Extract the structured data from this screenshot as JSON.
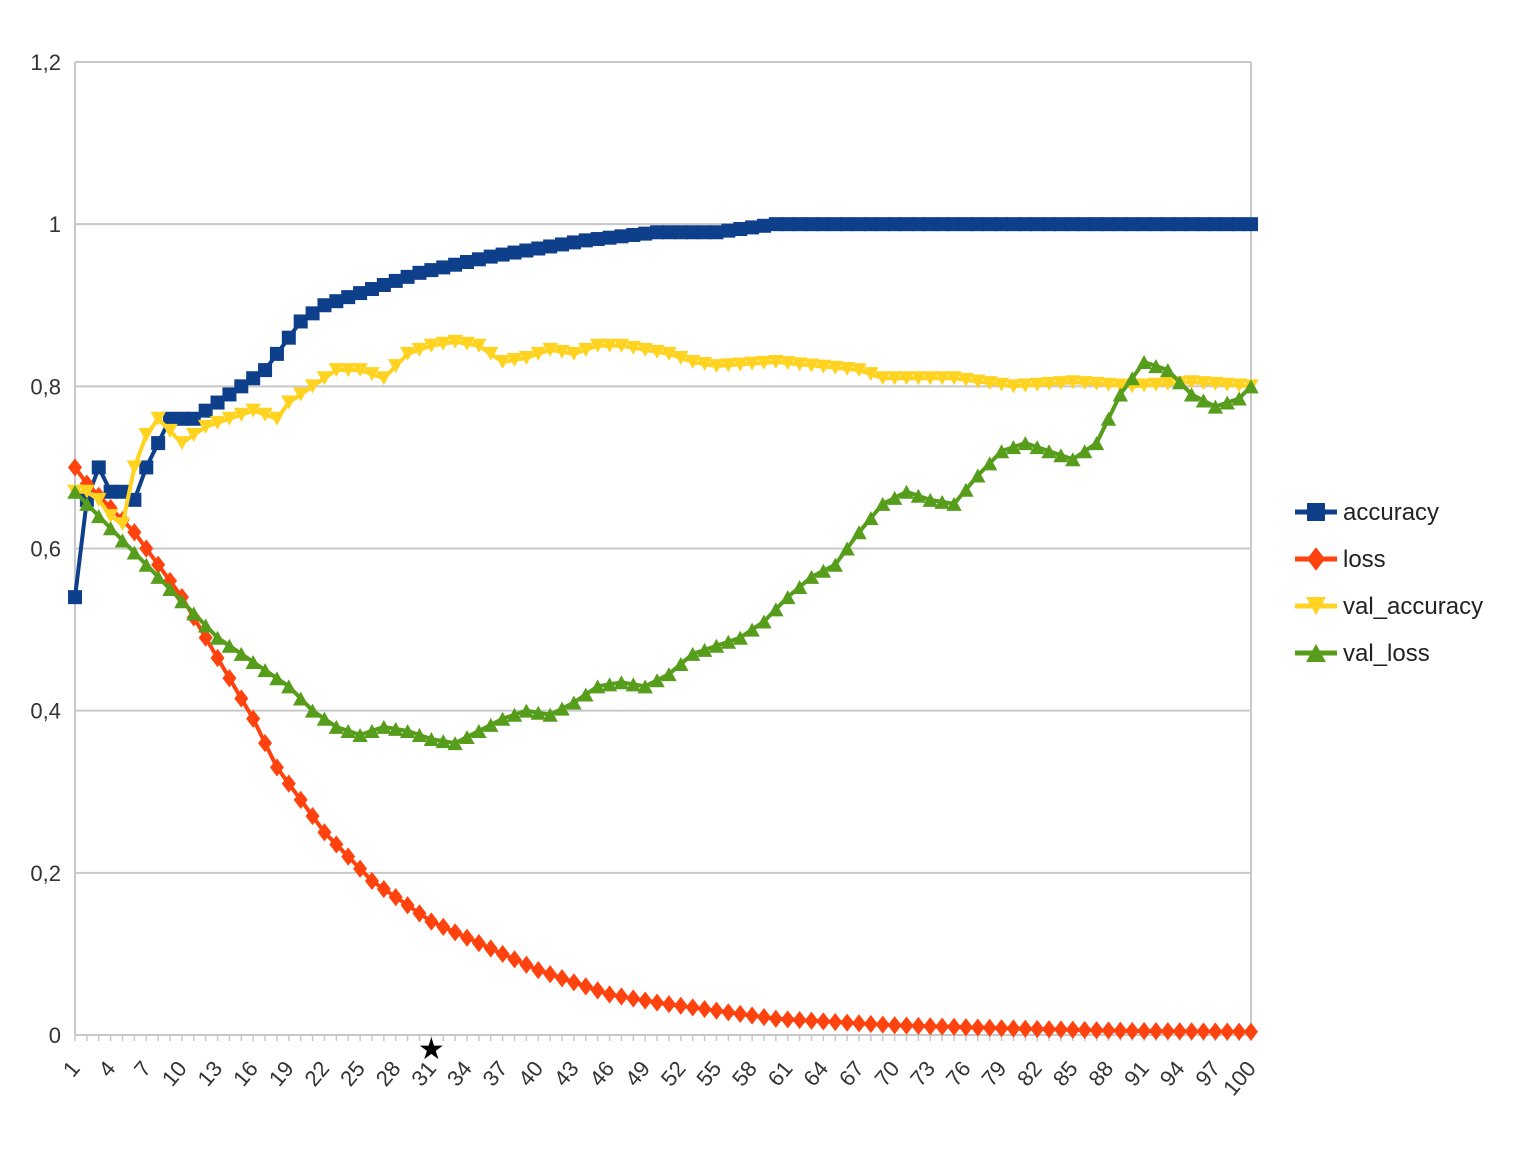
{
  "chart_data": {
    "type": "line",
    "title": "",
    "xlabel": "",
    "ylabel": "",
    "ylim": [
      0,
      1.2
    ],
    "yticks": [
      "0",
      "0,2",
      "0,4",
      "0,6",
      "0,8",
      "1",
      "1,2"
    ],
    "ytick_values": [
      0,
      0.2,
      0.4,
      0.6,
      0.8,
      1.0,
      1.2
    ],
    "x": [
      1,
      2,
      3,
      4,
      5,
      6,
      7,
      8,
      9,
      10,
      11,
      12,
      13,
      14,
      15,
      16,
      17,
      18,
      19,
      20,
      21,
      22,
      23,
      24,
      25,
      26,
      27,
      28,
      29,
      30,
      31,
      32,
      33,
      34,
      35,
      36,
      37,
      38,
      39,
      40,
      41,
      42,
      43,
      44,
      45,
      46,
      47,
      48,
      49,
      50,
      51,
      52,
      53,
      54,
      55,
      56,
      57,
      58,
      59,
      60,
      61,
      62,
      63,
      64,
      65,
      66,
      67,
      68,
      69,
      70,
      71,
      72,
      73,
      74,
      75,
      76,
      77,
      78,
      79,
      80,
      81,
      82,
      83,
      84,
      85,
      86,
      87,
      88,
      89,
      90,
      91,
      92,
      93,
      94,
      95,
      96,
      97,
      98,
      99,
      100
    ],
    "xtick_labels": [
      "1",
      "4",
      "7",
      "10",
      "13",
      "16",
      "19",
      "22",
      "25",
      "28",
      "31",
      "34",
      "37",
      "40",
      "43",
      "46",
      "49",
      "52",
      "55",
      "58",
      "61",
      "64",
      "67",
      "70",
      "73",
      "76",
      "79",
      "82",
      "85",
      "88",
      "91",
      "94",
      "97",
      "100"
    ],
    "legend_position": "right",
    "grid": true,
    "series": [
      {
        "name": "accuracy",
        "color": "#0e3f8a",
        "marker": "square",
        "anchors": [
          [
            1,
            0.54
          ],
          [
            2,
            0.66
          ],
          [
            3,
            0.7
          ],
          [
            4,
            0.67
          ],
          [
            5,
            0.67
          ],
          [
            6,
            0.66
          ],
          [
            7,
            0.7
          ],
          [
            8,
            0.73
          ],
          [
            9,
            0.76
          ],
          [
            10,
            0.76
          ],
          [
            11,
            0.76
          ],
          [
            12,
            0.77
          ],
          [
            13,
            0.78
          ],
          [
            14,
            0.79
          ],
          [
            15,
            0.8
          ],
          [
            16,
            0.81
          ],
          [
            17,
            0.82
          ],
          [
            18,
            0.84
          ],
          [
            19,
            0.86
          ],
          [
            20,
            0.88
          ],
          [
            21,
            0.89
          ],
          [
            22,
            0.9
          ],
          [
            24,
            0.91
          ],
          [
            26,
            0.92
          ],
          [
            28,
            0.93
          ],
          [
            30,
            0.94
          ],
          [
            33,
            0.95
          ],
          [
            36,
            0.96
          ],
          [
            40,
            0.97
          ],
          [
            44,
            0.98
          ],
          [
            50,
            0.99
          ],
          [
            55,
            0.99
          ],
          [
            60,
            1.0
          ],
          [
            100,
            1.0
          ]
        ]
      },
      {
        "name": "loss",
        "color": "#ff420e",
        "marker": "diamond",
        "anchors": [
          [
            1,
            0.7
          ],
          [
            2,
            0.68
          ],
          [
            4,
            0.65
          ],
          [
            6,
            0.62
          ],
          [
            8,
            0.58
          ],
          [
            10,
            0.54
          ],
          [
            12,
            0.49
          ],
          [
            14,
            0.44
          ],
          [
            16,
            0.39
          ],
          [
            18,
            0.33
          ],
          [
            20,
            0.29
          ],
          [
            22,
            0.25
          ],
          [
            24,
            0.22
          ],
          [
            26,
            0.19
          ],
          [
            28,
            0.17
          ],
          [
            31,
            0.14
          ],
          [
            34,
            0.12
          ],
          [
            37,
            0.1
          ],
          [
            40,
            0.08
          ],
          [
            43,
            0.065
          ],
          [
            46,
            0.05
          ],
          [
            50,
            0.04
          ],
          [
            55,
            0.03
          ],
          [
            60,
            0.02
          ],
          [
            70,
            0.012
          ],
          [
            80,
            0.008
          ],
          [
            90,
            0.005
          ],
          [
            100,
            0.004
          ]
        ]
      },
      {
        "name": "val_accuracy",
        "color": "#ffd320",
        "marker": "triangle-down",
        "anchors": [
          [
            1,
            0.67
          ],
          [
            2,
            0.67
          ],
          [
            3,
            0.66
          ],
          [
            4,
            0.64
          ],
          [
            5,
            0.63
          ],
          [
            6,
            0.7
          ],
          [
            7,
            0.74
          ],
          [
            8,
            0.76
          ],
          [
            10,
            0.73
          ],
          [
            12,
            0.75
          ],
          [
            14,
            0.76
          ],
          [
            16,
            0.77
          ],
          [
            18,
            0.76
          ],
          [
            19,
            0.78
          ],
          [
            21,
            0.8
          ],
          [
            23,
            0.82
          ],
          [
            25,
            0.82
          ],
          [
            27,
            0.81
          ],
          [
            29,
            0.84
          ],
          [
            31,
            0.85
          ],
          [
            33,
            0.855
          ],
          [
            35,
            0.85
          ],
          [
            37,
            0.83
          ],
          [
            39,
            0.835
          ],
          [
            41,
            0.845
          ],
          [
            43,
            0.84
          ],
          [
            45,
            0.85
          ],
          [
            47,
            0.85
          ],
          [
            49,
            0.845
          ],
          [
            51,
            0.84
          ],
          [
            53,
            0.83
          ],
          [
            55,
            0.825
          ],
          [
            60,
            0.83
          ],
          [
            67,
            0.82
          ],
          [
            69,
            0.81
          ],
          [
            75,
            0.81
          ],
          [
            80,
            0.8
          ],
          [
            85,
            0.805
          ],
          [
            90,
            0.8
          ],
          [
            95,
            0.805
          ],
          [
            100,
            0.8
          ]
        ]
      },
      {
        "name": "val_loss",
        "color": "#579d1c",
        "marker": "triangle-up",
        "anchors": [
          [
            1,
            0.67
          ],
          [
            3,
            0.64
          ],
          [
            5,
            0.61
          ],
          [
            7,
            0.58
          ],
          [
            9,
            0.55
          ],
          [
            11,
            0.52
          ],
          [
            13,
            0.49
          ],
          [
            15,
            0.47
          ],
          [
            17,
            0.45
          ],
          [
            19,
            0.43
          ],
          [
            21,
            0.4
          ],
          [
            23,
            0.38
          ],
          [
            25,
            0.37
          ],
          [
            27,
            0.38
          ],
          [
            29,
            0.375
          ],
          [
            31,
            0.365
          ],
          [
            33,
            0.36
          ],
          [
            35,
            0.375
          ],
          [
            37,
            0.39
          ],
          [
            39,
            0.4
          ],
          [
            41,
            0.395
          ],
          [
            43,
            0.41
          ],
          [
            45,
            0.43
          ],
          [
            47,
            0.435
          ],
          [
            49,
            0.43
          ],
          [
            51,
            0.445
          ],
          [
            53,
            0.47
          ],
          [
            55,
            0.48
          ],
          [
            57,
            0.49
          ],
          [
            59,
            0.51
          ],
          [
            61,
            0.54
          ],
          [
            63,
            0.565
          ],
          [
            65,
            0.58
          ],
          [
            67,
            0.62
          ],
          [
            69,
            0.655
          ],
          [
            71,
            0.67
          ],
          [
            73,
            0.66
          ],
          [
            75,
            0.655
          ],
          [
            77,
            0.69
          ],
          [
            79,
            0.72
          ],
          [
            81,
            0.73
          ],
          [
            83,
            0.72
          ],
          [
            85,
            0.71
          ],
          [
            87,
            0.73
          ],
          [
            89,
            0.79
          ],
          [
            91,
            0.83
          ],
          [
            93,
            0.82
          ],
          [
            95,
            0.79
          ],
          [
            97,
            0.775
          ],
          [
            99,
            0.785
          ],
          [
            100,
            0.8
          ]
        ]
      }
    ],
    "annotations": [
      {
        "type": "marker",
        "symbol": "★",
        "at_x": 31
      }
    ]
  }
}
